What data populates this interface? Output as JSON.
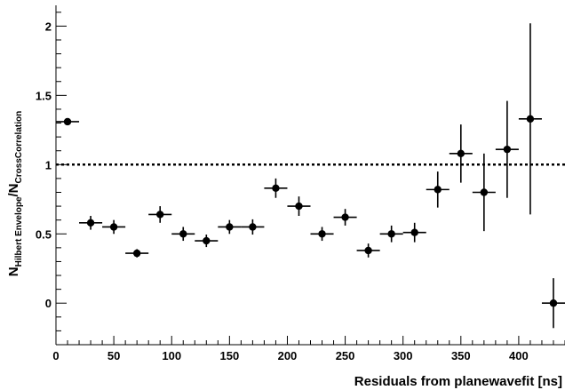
{
  "chart_data": {
    "type": "scatter",
    "title": "",
    "xlabel": "Residuals from planewavefit [ns]",
    "ylabel": {
      "main1": "N",
      "sub1": "Hilbert Envelope",
      "slash": "/",
      "main2": "N",
      "sub2": "CrossCorrelation"
    },
    "xlim": [
      0,
      440
    ],
    "ylim": [
      -0.3,
      2.15
    ],
    "x_ticks": [
      0,
      50,
      100,
      150,
      200,
      250,
      300,
      350,
      400
    ],
    "y_ticks": [
      0,
      0.5,
      1,
      1.5,
      2
    ],
    "x_tick_labels": [
      "0",
      "50",
      "100",
      "150",
      "200",
      "250",
      "300",
      "350",
      "400"
    ],
    "y_tick_labels": [
      "0",
      "0.5",
      "1",
      "1.5",
      "2"
    ],
    "x_error": 10,
    "reference_line": {
      "y": 1,
      "style": "dotted"
    },
    "points": [
      {
        "x": 10,
        "y": 1.31,
        "yerr": 0.0
      },
      {
        "x": 30,
        "y": 0.58,
        "yerr": 0.05
      },
      {
        "x": 50,
        "y": 0.55,
        "yerr": 0.05
      },
      {
        "x": 70,
        "y": 0.36,
        "yerr": 0.03
      },
      {
        "x": 90,
        "y": 0.64,
        "yerr": 0.06
      },
      {
        "x": 110,
        "y": 0.5,
        "yerr": 0.05
      },
      {
        "x": 130,
        "y": 0.45,
        "yerr": 0.045
      },
      {
        "x": 150,
        "y": 0.55,
        "yerr": 0.05
      },
      {
        "x": 170,
        "y": 0.55,
        "yerr": 0.055
      },
      {
        "x": 190,
        "y": 0.83,
        "yerr": 0.07
      },
      {
        "x": 210,
        "y": 0.7,
        "yerr": 0.07
      },
      {
        "x": 230,
        "y": 0.5,
        "yerr": 0.05
      },
      {
        "x": 250,
        "y": 0.62,
        "yerr": 0.06
      },
      {
        "x": 270,
        "y": 0.38,
        "yerr": 0.05
      },
      {
        "x": 290,
        "y": 0.5,
        "yerr": 0.06
      },
      {
        "x": 310,
        "y": 0.51,
        "yerr": 0.07
      },
      {
        "x": 330,
        "y": 0.82,
        "yerr": 0.13
      },
      {
        "x": 350,
        "y": 1.08,
        "yerr": 0.21
      },
      {
        "x": 370,
        "y": 0.8,
        "yerr": 0.28
      },
      {
        "x": 390,
        "y": 1.11,
        "yerr": 0.35
      },
      {
        "x": 410,
        "y": 1.33,
        "yerr": 0.69
      },
      {
        "x": 430,
        "y": 0.0,
        "yerr": 0.18
      }
    ],
    "grid": false,
    "colors": {
      "marker": "#000000",
      "line": "#000000"
    }
  }
}
